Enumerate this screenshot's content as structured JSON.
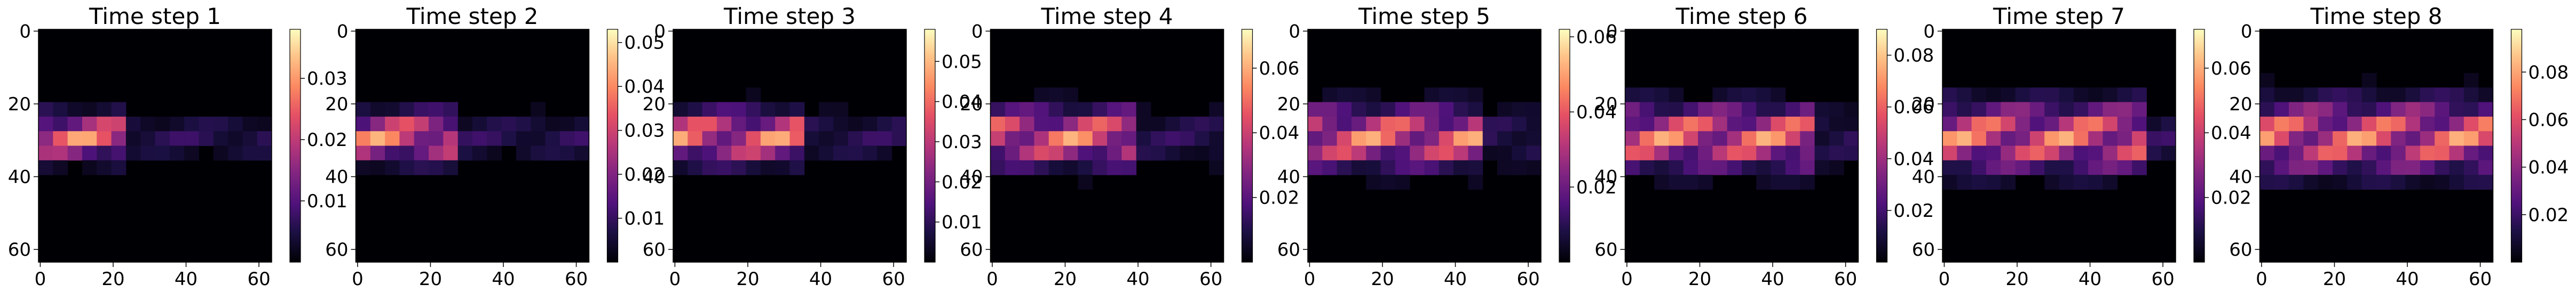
{
  "chart_data": [
    {
      "type": "heatmap",
      "title": "Time step 1",
      "xticks": [
        "0",
        "20",
        "40",
        "60"
      ],
      "yticks": [
        "0",
        "20",
        "40",
        "60"
      ],
      "xlim": [
        0,
        63
      ],
      "ylim": [
        63,
        0
      ],
      "colorbar": {
        "range": [
          0.0,
          0.038
        ],
        "ticks": [
          {
            "value": 0.01,
            "label": "0.01"
          },
          {
            "value": 0.02,
            "label": "0.02"
          },
          {
            "value": 0.03,
            "label": "0.03"
          }
        ]
      }
    },
    {
      "type": "heatmap",
      "title": "Time step 2",
      "xticks": [
        "0",
        "20",
        "40",
        "60"
      ],
      "yticks": [
        "0",
        "20",
        "40",
        "60"
      ],
      "xlim": [
        0,
        63
      ],
      "ylim": [
        63,
        0
      ],
      "colorbar": {
        "range": [
          0.0,
          0.053
        ],
        "ticks": [
          {
            "value": 0.01,
            "label": "0.01"
          },
          {
            "value": 0.02,
            "label": "0.02"
          },
          {
            "value": 0.03,
            "label": "0.03"
          },
          {
            "value": 0.04,
            "label": "0.04"
          },
          {
            "value": 0.05,
            "label": "0.05"
          }
        ]
      }
    },
    {
      "type": "heatmap",
      "title": "Time step 3",
      "xticks": [
        "0",
        "20",
        "40",
        "60"
      ],
      "yticks": [
        "0",
        "20",
        "40",
        "60"
      ],
      "xlim": [
        0,
        63
      ],
      "ylim": [
        63,
        0
      ],
      "colorbar": {
        "range": [
          0.0,
          0.058
        ],
        "ticks": [
          {
            "value": 0.01,
            "label": "0.01"
          },
          {
            "value": 0.02,
            "label": "0.02"
          },
          {
            "value": 0.03,
            "label": "0.03"
          },
          {
            "value": 0.04,
            "label": "0.04"
          },
          {
            "value": 0.05,
            "label": "0.05"
          }
        ]
      }
    },
    {
      "type": "heatmap",
      "title": "Time step 4",
      "xticks": [
        "0",
        "20",
        "40",
        "60"
      ],
      "yticks": [
        "0",
        "20",
        "40",
        "60"
      ],
      "xlim": [
        0,
        63
      ],
      "ylim": [
        63,
        0
      ],
      "colorbar": {
        "range": [
          0.0,
          0.072
        ],
        "ticks": [
          {
            "value": 0.02,
            "label": "0.02"
          },
          {
            "value": 0.04,
            "label": "0.04"
          },
          {
            "value": 0.06,
            "label": "0.06"
          }
        ]
      }
    },
    {
      "type": "heatmap",
      "title": "Time step 5",
      "xticks": [
        "0",
        "20",
        "40",
        "60"
      ],
      "yticks": [
        "0",
        "20",
        "40",
        "60"
      ],
      "xlim": [
        0,
        63
      ],
      "ylim": [
        63,
        0
      ],
      "colorbar": {
        "range": [
          0.0,
          0.062
        ],
        "ticks": [
          {
            "value": 0.02,
            "label": "0.02"
          },
          {
            "value": 0.04,
            "label": "0.04"
          },
          {
            "value": 0.06,
            "label": "0.06"
          }
        ]
      }
    },
    {
      "type": "heatmap",
      "title": "Time step 6",
      "xticks": [
        "0",
        "20",
        "40",
        "60"
      ],
      "yticks": [
        "0",
        "20",
        "40",
        "60"
      ],
      "xlim": [
        0,
        63
      ],
      "ylim": [
        63,
        0
      ],
      "colorbar": {
        "range": [
          0.0,
          0.09
        ],
        "ticks": [
          {
            "value": 0.02,
            "label": "0.02"
          },
          {
            "value": 0.04,
            "label": "0.04"
          },
          {
            "value": 0.06,
            "label": "0.06"
          },
          {
            "value": 0.08,
            "label": "0.08"
          }
        ]
      }
    },
    {
      "type": "heatmap",
      "title": "Time step 7",
      "xticks": [
        "0",
        "20",
        "40",
        "60"
      ],
      "yticks": [
        "0",
        "20",
        "40",
        "60"
      ],
      "xlim": [
        0,
        63
      ],
      "ylim": [
        63,
        0
      ],
      "colorbar": {
        "range": [
          0.0,
          0.072
        ],
        "ticks": [
          {
            "value": 0.02,
            "label": "0.02"
          },
          {
            "value": 0.04,
            "label": "0.04"
          },
          {
            "value": 0.06,
            "label": "0.06"
          }
        ]
      }
    },
    {
      "type": "heatmap",
      "title": "Time step 8",
      "xticks": [
        "0",
        "20",
        "40",
        "60"
      ],
      "yticks": [
        "0",
        "20",
        "40",
        "60"
      ],
      "xlim": [
        0,
        63
      ],
      "ylim": [
        63,
        0
      ],
      "colorbar": {
        "range": [
          0.0,
          0.098
        ],
        "ticks": [
          {
            "value": 0.02,
            "label": "0.02"
          },
          {
            "value": 0.04,
            "label": "0.04"
          },
          {
            "value": 0.06,
            "label": "0.06"
          },
          {
            "value": 0.08,
            "label": "0.08"
          }
        ]
      }
    }
  ]
}
